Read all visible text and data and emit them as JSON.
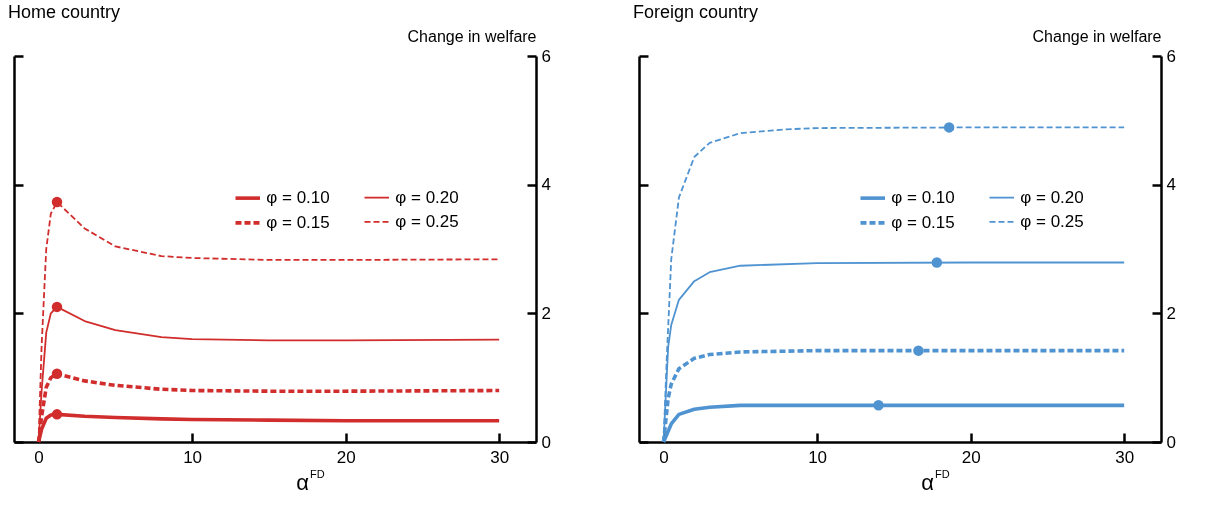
{
  "chart_data": [
    {
      "type": "line",
      "title": "Home country",
      "xlabel": "α$^{FD}$",
      "ylabel": "Change in welfare",
      "xlim": [
        -1.6,
        32.4
      ],
      "xticks": [
        0,
        10,
        20,
        30
      ],
      "ylim": [
        0,
        6
      ],
      "yticks": [
        0,
        2,
        4,
        6
      ],
      "legend": "right",
      "series": [
        {
          "name": "φ = 0.10",
          "color": "#d12d2d",
          "line_style": "solid",
          "x": [
            0,
            0.2,
            0.5,
            0.8,
            1.2,
            3,
            5,
            8,
            10,
            15,
            20,
            30
          ],
          "values": [
            0,
            0.2,
            0.37,
            0.42,
            0.43,
            0.4,
            0.38,
            0.36,
            0.35,
            0.34,
            0.33,
            0.33
          ]
        },
        {
          "name": "φ = 0.15",
          "color": "#d12d2d",
          "line_style": "dashed",
          "x": [
            0,
            0.2,
            0.5,
            0.8,
            1.2,
            3,
            5,
            8,
            10,
            15,
            20,
            30
          ],
          "values": [
            0,
            0.4,
            0.85,
            1.0,
            1.06,
            0.95,
            0.88,
            0.82,
            0.8,
            0.79,
            0.79,
            0.8
          ]
        },
        {
          "name": "φ = 0.20",
          "color": "#d12d2d",
          "line_style": "solid",
          "x": [
            0,
            0.2,
            0.5,
            0.8,
            1.2,
            3,
            5,
            8,
            10,
            15,
            20,
            30
          ],
          "values": [
            0,
            0.8,
            1.7,
            2.0,
            2.1,
            1.88,
            1.74,
            1.63,
            1.6,
            1.58,
            1.58,
            1.59
          ]
        },
        {
          "name": "φ = 0.25",
          "color": "#d12d2d",
          "line_style": "dashed",
          "x": [
            0,
            0.2,
            0.5,
            0.8,
            1.2,
            3,
            5,
            8,
            10,
            15,
            20,
            30
          ],
          "values": [
            0,
            1.5,
            3.0,
            3.55,
            3.73,
            3.32,
            3.04,
            2.89,
            2.86,
            2.83,
            2.83,
            2.84
          ]
        },
        {
          "type": "scatter",
          "marker": "circle",
          "color": "#d12d2d",
          "x": [
            1.2,
            1.2,
            1.2,
            1.2
          ],
          "values": [
            0.43,
            1.06,
            2.1,
            3.73
          ]
        }
      ]
    },
    {
      "type": "line",
      "title": "Foreign country",
      "xlabel": "α$^{FD}$",
      "ylabel": "Change in welfare",
      "xlim": [
        -1.6,
        32.4
      ],
      "xticks": [
        0,
        10,
        20,
        30
      ],
      "ylim": [
        0,
        6
      ],
      "yticks": [
        0,
        2,
        4,
        6
      ],
      "legend": "right",
      "series": [
        {
          "name": "φ = 0.10",
          "color": "#4f93d1",
          "line_style": "solid",
          "x": [
            0,
            0.5,
            1,
            2,
            3,
            5,
            10,
            20,
            30
          ],
          "values": [
            0,
            0.28,
            0.43,
            0.51,
            0.54,
            0.57,
            0.57,
            0.57,
            0.57
          ]
        },
        {
          "name": "φ = 0.15",
          "color": "#4f93d1",
          "line_style": "dashed",
          "x": [
            0,
            0.3,
            0.5,
            1,
            2,
            3,
            5,
            10,
            20,
            30
          ],
          "values": [
            0,
            0.68,
            0.9,
            1.14,
            1.3,
            1.36,
            1.4,
            1.42,
            1.42,
            1.42
          ]
        },
        {
          "name": "φ = 0.20",
          "color": "#4f93d1",
          "line_style": "solid",
          "x": [
            0,
            0.3,
            0.5,
            1,
            2,
            3,
            5,
            10,
            20,
            30
          ],
          "values": [
            0,
            1.48,
            1.82,
            2.21,
            2.5,
            2.64,
            2.74,
            2.78,
            2.79,
            2.79
          ]
        },
        {
          "name": "φ = 0.25",
          "color": "#4f93d1",
          "line_style": "dashed",
          "x": [
            0,
            0.2,
            0.5,
            1,
            2,
            3,
            5,
            8,
            10,
            20,
            30
          ],
          "values": [
            0,
            1.25,
            2.84,
            3.8,
            4.43,
            4.65,
            4.8,
            4.86,
            4.88,
            4.89,
            4.89
          ]
        },
        {
          "type": "scatter",
          "marker": "circle",
          "color": "#4f93d1",
          "x": [
            14.0,
            16.6,
            17.8,
            18.6
          ],
          "values": [
            0.57,
            1.42,
            2.79,
            4.89
          ]
        }
      ]
    }
  ]
}
